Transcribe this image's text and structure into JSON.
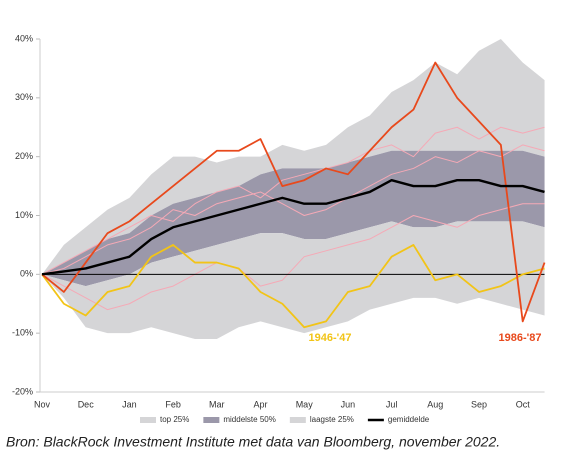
{
  "chart_data": {
    "type": "line",
    "categories": [
      "Nov",
      null,
      "Dec",
      null,
      "Jan",
      null,
      "Feb",
      null,
      "Mar",
      null,
      "Apr",
      null,
      "May",
      null,
      "Jun",
      null,
      "Jul",
      null,
      "Aug",
      null,
      "Sep",
      null,
      "Oct",
      null
    ],
    "ylim": [
      -20,
      40
    ],
    "yticks": [
      {
        "value": -20,
        "label": "-20%"
      },
      {
        "value": -10,
        "label": "-10%"
      },
      {
        "value": 0,
        "label": "0%"
      },
      {
        "value": 10,
        "label": "10%"
      },
      {
        "value": 20,
        "label": "20%"
      },
      {
        "value": 30,
        "label": "30%"
      },
      {
        "value": 40,
        "label": "40%"
      }
    ],
    "bands": [
      {
        "name": "top 25%",
        "color": "#d5d5d7",
        "low": [
          0,
          2,
          4,
          6,
          7,
          10,
          12,
          13,
          14,
          15,
          17,
          18,
          18,
          18,
          19,
          20,
          21,
          21,
          21,
          21,
          21,
          21,
          21,
          20
        ],
        "high": [
          0,
          5,
          8,
          11,
          13,
          17,
          20,
          20,
          19,
          20,
          20,
          22,
          21,
          22,
          25,
          27,
          31,
          33,
          36,
          34,
          38,
          40,
          36,
          33
        ]
      },
      {
        "name": "middelste 50%",
        "color": "#9b98aa",
        "low": [
          0,
          -1,
          -2,
          -1,
          0,
          2,
          3,
          4,
          5,
          6,
          7,
          7,
          6,
          6,
          7,
          8,
          9,
          8,
          8,
          9,
          9,
          9,
          9,
          8
        ],
        "high": [
          0,
          2,
          4,
          6,
          7,
          10,
          12,
          13,
          14,
          15,
          17,
          18,
          18,
          18,
          19,
          20,
          21,
          21,
          21,
          21,
          21,
          21,
          21,
          20
        ]
      },
      {
        "name": "laagste 25%",
        "color": "#d5d5d7",
        "low": [
          0,
          -4,
          -9,
          -10,
          -10,
          -9,
          -10,
          -11,
          -11,
          -9,
          -8,
          -9,
          -10,
          -9,
          -8,
          -6,
          -5,
          -4,
          -4,
          -5,
          -4,
          -5,
          -6,
          -7
        ],
        "high": [
          0,
          -1,
          -2,
          -1,
          0,
          2,
          3,
          4,
          5,
          6,
          7,
          7,
          6,
          6,
          7,
          8,
          9,
          8,
          8,
          9,
          9,
          9,
          9,
          8
        ]
      }
    ],
    "other_lines": [
      {
        "color": "#f5a9b6",
        "values": [
          0,
          2,
          4,
          6,
          8,
          10,
          9,
          12,
          14,
          15,
          13,
          16,
          17,
          18,
          19,
          21,
          22,
          20,
          24,
          25,
          23,
          25,
          24,
          25
        ]
      },
      {
        "color": "#f5a9b6",
        "values": [
          0,
          -2,
          -4,
          -6,
          -5,
          -3,
          -2,
          0,
          2,
          1,
          -2,
          -1,
          3,
          4,
          5,
          6,
          8,
          10,
          9,
          8,
          10,
          11,
          12,
          12
        ]
      },
      {
        "color": "#f5a9b6",
        "values": [
          0,
          1,
          3,
          5,
          6,
          8,
          11,
          10,
          12,
          13,
          14,
          12,
          10,
          11,
          13,
          15,
          17,
          18,
          20,
          19,
          21,
          20,
          22,
          21
        ]
      }
    ],
    "annotated_lines": [
      {
        "label": "1946-'47",
        "color": "#f2c417",
        "values": [
          0,
          -5,
          -7,
          -3,
          -2,
          3,
          5,
          2,
          2,
          1,
          -3,
          -5,
          -9,
          -8,
          -3,
          -2,
          3,
          5,
          -1,
          0,
          -3,
          -2,
          0,
          1
        ]
      },
      {
        "label": "1986-'87",
        "color": "#e8491c",
        "values": [
          0,
          -3,
          2,
          7,
          9,
          12,
          15,
          18,
          21,
          21,
          23,
          15,
          16,
          18,
          17,
          21,
          25,
          28,
          36,
          30,
          26,
          22,
          -8,
          2
        ]
      }
    ],
    "series": [
      {
        "name": "gemiddelde",
        "color": "#000000",
        "values": [
          0,
          0.5,
          1,
          2,
          3,
          6,
          8,
          9,
          10,
          11,
          12,
          13,
          12,
          12,
          13,
          14,
          16,
          15,
          15,
          16,
          16,
          15,
          15,
          14
        ]
      }
    ],
    "source": "Bron: BlackRock Investment Institute met data van Bloomberg, november 2022."
  }
}
